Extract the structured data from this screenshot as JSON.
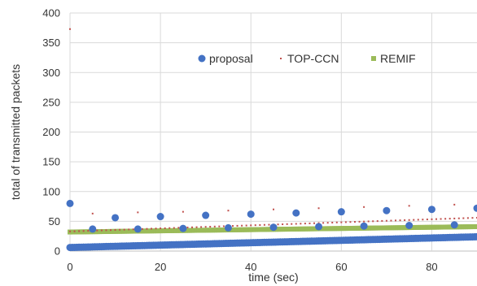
{
  "chart_data": {
    "type": "scatter",
    "xlabel": "time (sec)",
    "ylabel": "total of transmitted packets",
    "xlim": [
      0,
      90
    ],
    "ylim": [
      0,
      400
    ],
    "x_ticks": [
      0,
      20,
      40,
      60,
      80
    ],
    "y_ticks": [
      0,
      50,
      100,
      150,
      200,
      250,
      300,
      350,
      400
    ],
    "grid": true,
    "legend": "top-right",
    "series": [
      {
        "name": "proposal",
        "color": "#4472C4",
        "marker": "circle",
        "base": {
          "x_start": 0,
          "x_end": 90,
          "x_step": 0.5,
          "y_start": 6,
          "y_end": 24
        },
        "outliers": [
          [
            0,
            80
          ],
          [
            5,
            37
          ],
          [
            10,
            56
          ],
          [
            15,
            37
          ],
          [
            20,
            58
          ],
          [
            25,
            38
          ],
          [
            30,
            60
          ],
          [
            35,
            39
          ],
          [
            40,
            62
          ],
          [
            45,
            40
          ],
          [
            50,
            64
          ],
          [
            55,
            41
          ],
          [
            60,
            66
          ],
          [
            65,
            42
          ],
          [
            70,
            68
          ],
          [
            75,
            43
          ],
          [
            80,
            70
          ],
          [
            85,
            44
          ],
          [
            90,
            72
          ]
        ]
      },
      {
        "name": "TOP-CCN",
        "color": "#C0504D",
        "marker": "dot",
        "base": {
          "x_start": 0,
          "x_end": 90,
          "x_step": 1,
          "y_start": 33,
          "y_end": 56
        },
        "outliers": [
          [
            0,
            373
          ],
          [
            5,
            63
          ],
          [
            15,
            65
          ],
          [
            25,
            66
          ],
          [
            35,
            68
          ],
          [
            45,
            70
          ],
          [
            55,
            72
          ],
          [
            65,
            74
          ],
          [
            75,
            76
          ],
          [
            85,
            78
          ]
        ]
      },
      {
        "name": "REMIF",
        "color": "#9BBB59",
        "marker": "square",
        "base": {
          "x_start": 0,
          "x_end": 90,
          "x_step": 0.5,
          "y_start": 32,
          "y_end": 41
        },
        "outliers": []
      }
    ]
  }
}
